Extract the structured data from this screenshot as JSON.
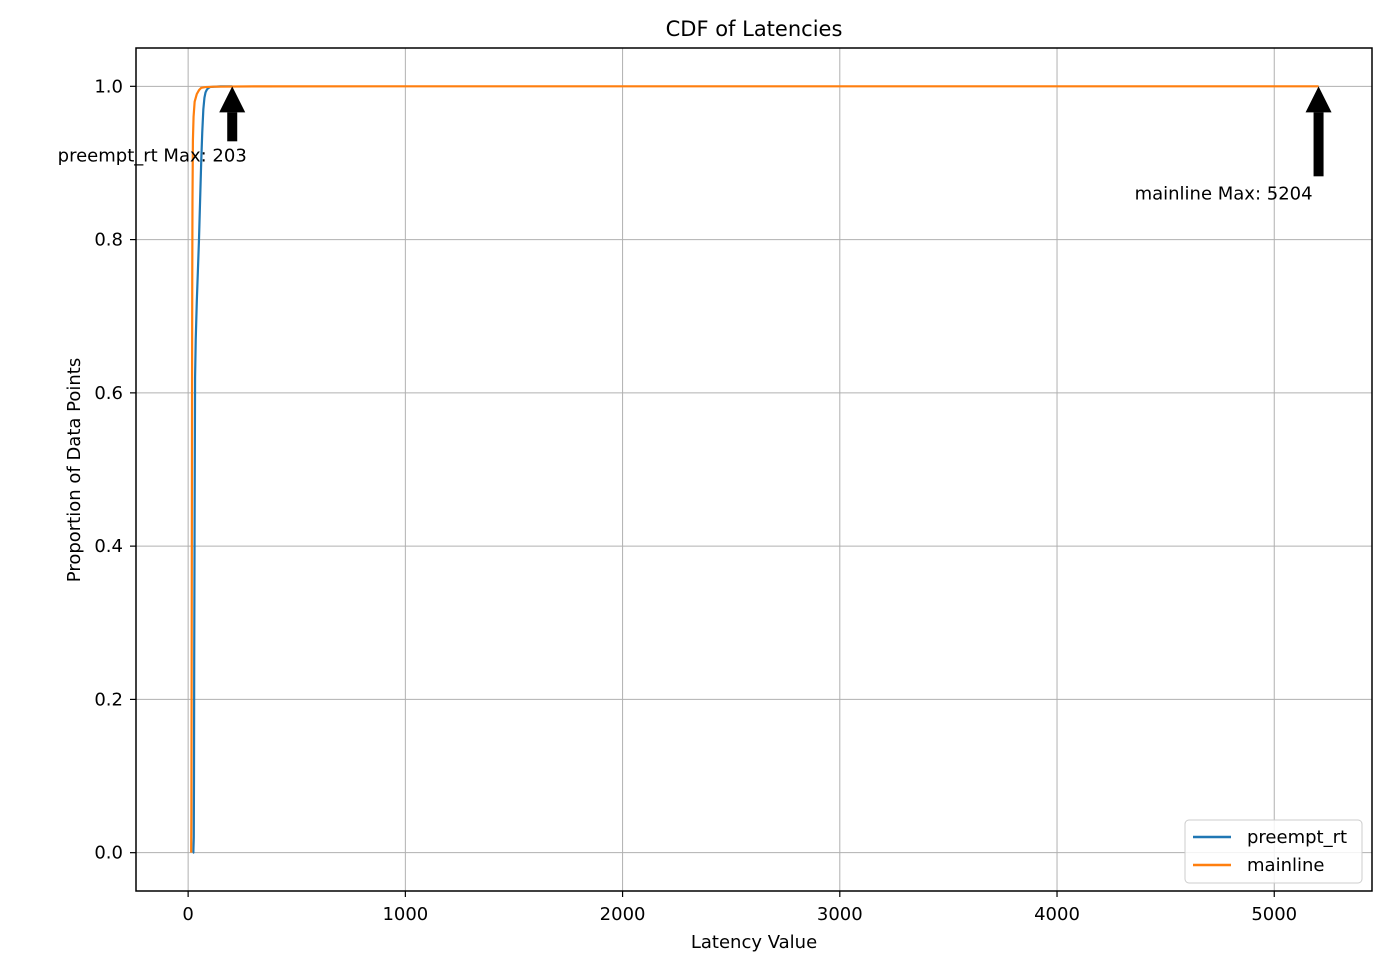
{
  "chart_data": {
    "type": "line",
    "title": "CDF of Latencies",
    "xlabel": "Latency Value",
    "ylabel": "Proportion of Data Points",
    "xlim": [
      -240,
      5450
    ],
    "ylim": [
      -0.05,
      1.05
    ],
    "xticks": [
      0,
      1000,
      2000,
      3000,
      4000,
      5000
    ],
    "yticks": [
      0.0,
      0.2,
      0.4,
      0.6,
      0.8,
      1.0
    ],
    "xtick_labels": [
      "0",
      "1000",
      "2000",
      "3000",
      "4000",
      "5000"
    ],
    "ytick_labels": [
      "0.0",
      "0.2",
      "0.4",
      "0.6",
      "0.8",
      "1.0"
    ],
    "grid": true,
    "legend_position": "lower-right",
    "series": [
      {
        "name": "preempt_rt",
        "color": "#1f77b4",
        "x": [
          22,
          24,
          26,
          27,
          28,
          30,
          32,
          35,
          40,
          45,
          50,
          55,
          60,
          65,
          70,
          75,
          80,
          85,
          90,
          100,
          120,
          150,
          203
        ],
        "y": [
          0.0,
          0.0,
          0.02,
          0.1,
          0.25,
          0.45,
          0.62,
          0.67,
          0.72,
          0.76,
          0.8,
          0.85,
          0.9,
          0.94,
          0.97,
          0.985,
          0.992,
          0.995,
          0.997,
          0.999,
          0.9995,
          0.9999,
          1.0
        ]
      },
      {
        "name": "mainline",
        "color": "#ff7f0e",
        "x": [
          14,
          15,
          16,
          17,
          18,
          19,
          20,
          22,
          25,
          30,
          35,
          40,
          50,
          60,
          80,
          120,
          300,
          1000,
          3000,
          5204
        ],
        "y": [
          0.0,
          0.05,
          0.2,
          0.4,
          0.6,
          0.75,
          0.85,
          0.93,
          0.96,
          0.98,
          0.985,
          0.99,
          0.995,
          0.998,
          0.999,
          0.9995,
          0.9999,
          1.0,
          1.0,
          1.0
        ]
      }
    ],
    "annotations": [
      {
        "text": "preempt_rt Max: 203",
        "x": 203,
        "y": 1.0
      },
      {
        "text": "mainline Max: 5204",
        "x": 5204,
        "y": 1.0
      }
    ]
  }
}
